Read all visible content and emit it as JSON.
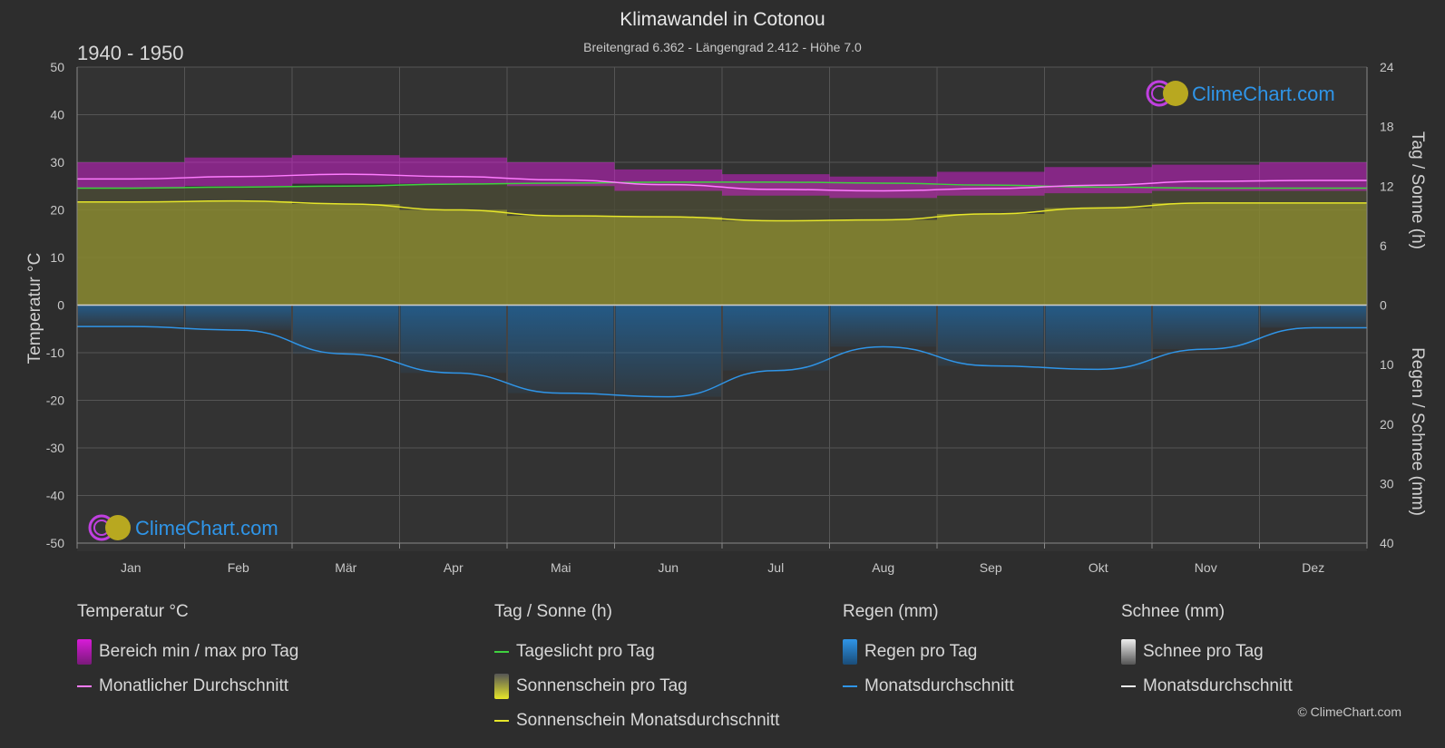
{
  "header": {
    "title": "Klimawandel in Cotonou",
    "subtitle": "Breitengrad 6.362 - Längengrad 2.412 - Höhe 7.0",
    "period": "1940 - 1950"
  },
  "brand": {
    "name": "ClimeChart.com",
    "copyright": "© ClimeChart.com"
  },
  "colors": {
    "background": "#2d2d2d",
    "temp_range": "#d81bd8",
    "temp_avg": "#ff7cff",
    "daylight": "#3fd13f",
    "sunshine_fill": "#8a8a30",
    "sunshine_avg": "#e6e62a",
    "rain": "#1e6aa8",
    "rain_avg": "#2f95e8",
    "snow": "#cccccc",
    "brand": "#2f95e8"
  },
  "chart_data": {
    "type": "line",
    "categories": [
      "Jan",
      "Feb",
      "Mär",
      "Apr",
      "Mai",
      "Jun",
      "Jul",
      "Aug",
      "Sep",
      "Okt",
      "Nov",
      "Dez"
    ],
    "y_left": {
      "label": "Temperatur °C",
      "lim": [
        -50,
        50
      ],
      "ticks": [
        50,
        40,
        30,
        20,
        10,
        0,
        -10,
        -20,
        -30,
        -40,
        -50
      ]
    },
    "y_right_top": {
      "label": "Tag / Sonne (h)",
      "lim": [
        0,
        24
      ],
      "ticks": [
        24,
        18,
        12,
        6,
        0
      ]
    },
    "y_right_bottom": {
      "label": "Regen / Schnee (mm)",
      "lim": [
        0,
        40
      ],
      "ticks": [
        0,
        10,
        20,
        30,
        40
      ]
    },
    "grid": true,
    "series": [
      {
        "name": "Bereich min / max pro Tag",
        "unit": "°C",
        "min": [
          24.5,
          25.0,
          25.5,
          25.5,
          25.0,
          24.0,
          23.0,
          22.5,
          23.0,
          23.5,
          24.0,
          24.0
        ],
        "max": [
          30.0,
          31.0,
          31.5,
          31.0,
          30.0,
          28.5,
          27.5,
          27.0,
          28.0,
          29.0,
          29.5,
          30.0
        ]
      },
      {
        "name": "Monatlicher Durchschnitt",
        "unit": "°C",
        "values": [
          26.5,
          27.0,
          27.5,
          27.0,
          26.3,
          25.3,
          24.3,
          24.0,
          24.5,
          25.2,
          26.0,
          26.2
        ]
      },
      {
        "name": "Tageslicht pro Tag",
        "unit": "h",
        "values": [
          11.8,
          11.9,
          12.0,
          12.2,
          12.3,
          12.4,
          12.4,
          12.3,
          12.1,
          11.9,
          11.8,
          11.8
        ]
      },
      {
        "name": "Sonnenschein Monatsdurchschnitt",
        "unit": "h",
        "values": [
          10.4,
          10.5,
          10.2,
          9.6,
          9.0,
          8.9,
          8.5,
          8.6,
          9.2,
          9.8,
          10.3,
          10.3
        ]
      },
      {
        "name": "Regen Monatsdurchschnitt",
        "unit": "mm",
        "values": [
          3.6,
          4.2,
          8.2,
          11.4,
          14.8,
          15.4,
          11.0,
          7.0,
          10.2,
          10.8,
          7.4,
          3.8
        ]
      }
    ]
  },
  "legend": {
    "temperature": {
      "title": "Temperatur °C",
      "range": "Bereich min / max pro Tag",
      "avg": "Monatlicher Durchschnitt"
    },
    "sun": {
      "title": "Tag / Sonne (h)",
      "daylight": "Tageslicht pro Tag",
      "sunshine": "Sonnenschein pro Tag",
      "sunshine_avg": "Sonnenschein Monatsdurchschnitt"
    },
    "rain": {
      "title": "Regen (mm)",
      "per_day": "Regen pro Tag",
      "avg": "Monatsdurchschnitt"
    },
    "snow": {
      "title": "Schnee (mm)",
      "per_day": "Schnee pro Tag",
      "avg": "Monatsdurchschnitt"
    }
  }
}
